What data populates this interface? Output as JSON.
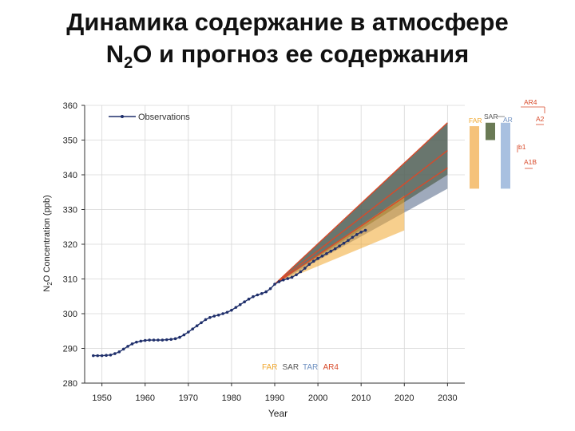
{
  "slide": {
    "title_line1": "Динамика содержание в атмосфере",
    "title_n": "N",
    "title_sub": "2",
    "title_rest": "O  и прогноз ее содержания"
  },
  "colors": {
    "observations": "#1f2f6b",
    "far": "#f0a830",
    "sar": "#3d4a2e",
    "tar": "#7f8ea6",
    "ar4": "#d84a2a",
    "tar_box": "#a8c0e0",
    "sar_box": "#6a7a55",
    "far_box": "#f5c27a"
  },
  "chart_data": {
    "type": "line",
    "xlabel": "Year",
    "ylabel": "N2O Concentration (ppb)",
    "xlim": [
      1946,
      2034
    ],
    "ylim": [
      280,
      360
    ],
    "xticks": [
      1950,
      1960,
      1970,
      1980,
      1990,
      2000,
      2010,
      2020,
      2030
    ],
    "yticks": [
      280,
      290,
      300,
      310,
      320,
      330,
      340,
      350,
      360
    ],
    "grid": true,
    "legend": {
      "placement": "top-left",
      "entry": "Observations"
    },
    "series": [
      {
        "name": "Observations",
        "x": [
          1948,
          1949,
          1950,
          1951,
          1952,
          1953,
          1954,
          1955,
          1956,
          1957,
          1958,
          1959,
          1960,
          1961,
          1962,
          1963,
          1964,
          1965,
          1966,
          1967,
          1968,
          1969,
          1970,
          1971,
          1972,
          1973,
          1974,
          1975,
          1976,
          1977,
          1978,
          1979,
          1980,
          1981,
          1982,
          1983,
          1984,
          1985,
          1986,
          1987,
          1988,
          1989,
          1990,
          1991,
          1992,
          1993,
          1994,
          1995,
          1996,
          1997,
          1998,
          1999,
          2000,
          2001,
          2002,
          2003,
          2004,
          2005,
          2006,
          2007,
          2008,
          2009,
          2010,
          2011
        ],
        "values": [
          287.9,
          287.9,
          287.9,
          288.0,
          288.1,
          288.5,
          289.0,
          289.8,
          290.6,
          291.3,
          291.8,
          292.1,
          292.3,
          292.4,
          292.4,
          292.4,
          292.4,
          292.5,
          292.6,
          292.8,
          293.2,
          293.9,
          294.7,
          295.6,
          296.5,
          297.4,
          298.3,
          298.9,
          299.3,
          299.6,
          300.0,
          300.4,
          301.0,
          301.8,
          302.6,
          303.4,
          304.2,
          304.9,
          305.4,
          305.8,
          306.3,
          307.2,
          308.5,
          309.2,
          309.7,
          310.1,
          310.5,
          311.2,
          312.1,
          313.1,
          314.2,
          315.1,
          315.9,
          316.6,
          317.3,
          318.0,
          318.7,
          319.5,
          320.3,
          321.1,
          322.0,
          322.8,
          323.5,
          324.0
        ]
      },
      {
        "name": "FAR",
        "x": [
          1990,
          2020
        ],
        "lower": [
          308.5,
          324
        ],
        "upper": [
          308.5,
          334
        ]
      },
      {
        "name": "SAR",
        "x": [
          1990,
          2030
        ],
        "lower": [
          308.5,
          340
        ],
        "upper": [
          308.5,
          355
        ]
      },
      {
        "name": "TAR",
        "x": [
          1990,
          2030
        ],
        "lower": [
          308.5,
          336
        ],
        "upper": [
          308.5,
          355
        ]
      },
      {
        "name": "AR4",
        "x": [
          1990,
          2030
        ],
        "lines": [
          [
            308.5,
            342
          ],
          [
            308.5,
            347
          ],
          [
            308.5,
            355
          ]
        ]
      }
    ],
    "projection_legend": [
      "FAR",
      "SAR",
      "TAR",
      "AR4"
    ],
    "side_bars": {
      "header": "AR4",
      "labels": {
        "far": "FAR",
        "sar": "SAR",
        "tar": "AR",
        "a2": "A2",
        "b1": "b1",
        "a1b": "A1B"
      },
      "ranges": {
        "far": [
          336,
          354
        ],
        "sar": [
          350,
          355
        ],
        "tar": [
          336,
          355
        ]
      }
    }
  }
}
